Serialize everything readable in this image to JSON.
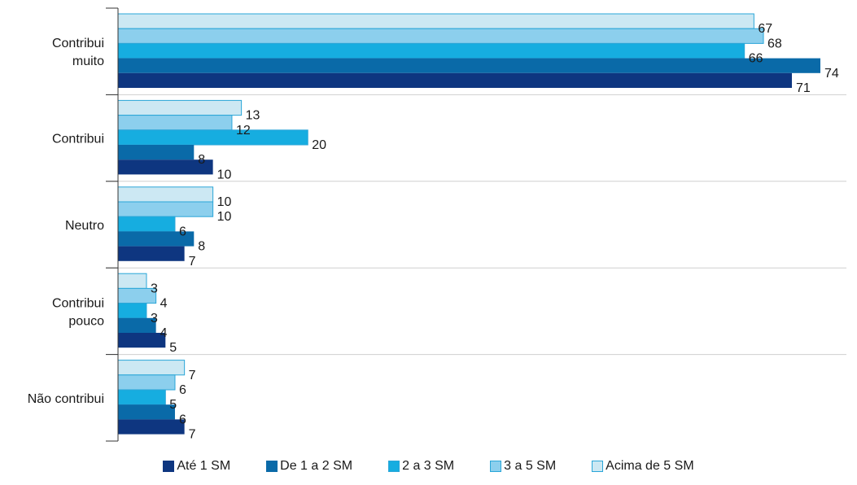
{
  "chart_data": {
    "type": "bar",
    "orientation": "horizontal",
    "categories": [
      [
        "Contribui",
        "muito"
      ],
      [
        "Contribui"
      ],
      [
        "Neutro"
      ],
      [
        "Contribui",
        "pouco"
      ],
      [
        "Não contribui"
      ]
    ],
    "series": [
      {
        "name": "Até 1 SM",
        "color": "#0e3680",
        "values": [
          71,
          10,
          7,
          5,
          7
        ]
      },
      {
        "name": "De 1 a 2 SM",
        "color": "#0a6aa8",
        "values": [
          74,
          8,
          8,
          4,
          6
        ]
      },
      {
        "name": "2 a 3 SM",
        "color": "#16ade0",
        "values": [
          66,
          20,
          6,
          3,
          5
        ]
      },
      {
        "name": "3 a 5 SM",
        "color": "#8ccfed",
        "values": [
          68,
          12,
          10,
          4,
          6
        ]
      },
      {
        "name": "Acima de 5 SM",
        "color": "#cce8f3",
        "values": [
          67,
          13,
          10,
          3,
          7
        ]
      }
    ],
    "xlim": [
      0,
      80
    ],
    "grid": "horizontal separators between groups",
    "legend_position": "bottom"
  }
}
